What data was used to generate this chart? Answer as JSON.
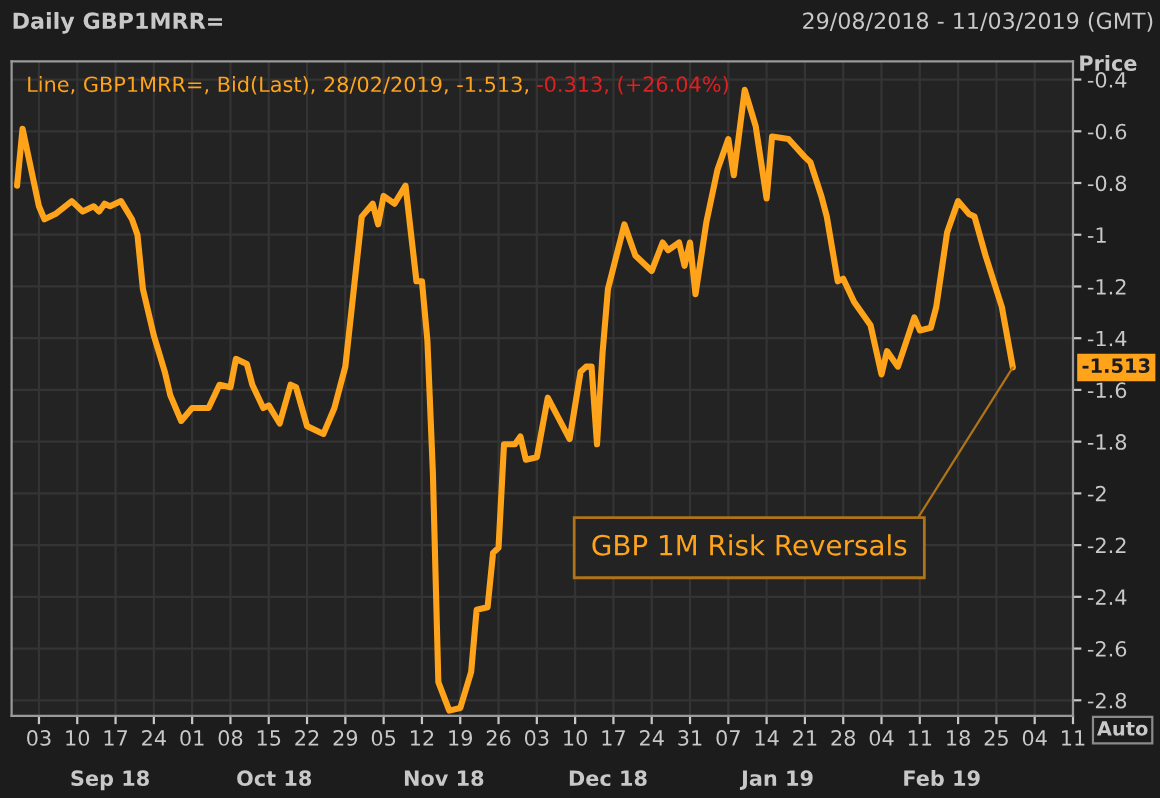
{
  "chart_data": {
    "type": "line",
    "title": "Daily GBP1MRR=",
    "subtitle": "29/08/2018 - 11/03/2019 (GMT)",
    "ylabel": "Price",
    "series": [
      {
        "name": "Line, GBP1MRR=, Bid(Last), 28/02/2019, -1.513,",
        "color": "#ffa31a",
        "x": [
          "2018-08-30",
          "2018-08-31",
          "2018-09-03",
          "2018-09-04",
          "2018-09-06",
          "2018-09-09",
          "2018-09-11",
          "2018-09-13",
          "2018-09-14",
          "2018-09-15",
          "2018-09-16",
          "2018-09-18",
          "2018-09-20",
          "2018-09-21",
          "2018-09-22",
          "2018-09-24",
          "2018-09-26",
          "2018-09-27",
          "2018-09-29",
          "2018-10-01",
          "2018-10-04",
          "2018-10-06",
          "2018-10-08",
          "2018-10-09",
          "2018-10-11",
          "2018-10-12",
          "2018-10-14",
          "2018-10-15",
          "2018-10-17",
          "2018-10-19",
          "2018-10-20",
          "2018-10-22",
          "2018-10-25",
          "2018-10-27",
          "2018-10-29",
          "2018-11-01",
          "2018-11-03",
          "2018-11-04",
          "2018-11-05",
          "2018-11-07",
          "2018-11-09",
          "2018-11-11",
          "2018-11-12",
          "2018-11-13",
          "2018-11-14",
          "2018-11-15",
          "2018-11-17",
          "2018-11-19",
          "2018-11-21",
          "2018-11-22",
          "2018-11-24",
          "2018-11-25",
          "2018-11-26",
          "2018-11-27",
          "2018-11-29",
          "2018-11-30",
          "2018-12-01",
          "2018-12-03",
          "2018-12-05",
          "2018-12-09",
          "2018-12-11",
          "2018-12-12",
          "2018-12-13",
          "2018-12-14",
          "2018-12-15",
          "2018-12-16",
          "2018-12-19",
          "2018-12-21",
          "2018-12-24",
          "2018-12-26",
          "2018-12-27",
          "2018-12-29",
          "2018-12-30",
          "2018-12-31",
          "2019-01-01",
          "2019-01-03",
          "2019-01-05",
          "2019-01-07",
          "2019-01-08",
          "2019-01-10",
          "2019-01-12",
          "2019-01-14",
          "2019-01-15",
          "2019-01-18",
          "2019-01-21",
          "2019-01-22",
          "2019-01-24",
          "2019-01-25",
          "2019-01-27",
          "2019-01-28",
          "2019-01-30",
          "2019-02-02",
          "2019-02-04",
          "2019-02-05",
          "2019-02-07",
          "2019-02-10",
          "2019-02-11",
          "2019-02-13",
          "2019-02-14",
          "2019-02-16",
          "2019-02-18",
          "2019-02-20",
          "2019-02-21",
          "2019-02-23",
          "2019-02-26",
          "2019-02-28"
        ],
        "values": [
          -0.81,
          -0.59,
          -0.89,
          -0.94,
          -0.92,
          -0.87,
          -0.91,
          -0.89,
          -0.91,
          -0.88,
          -0.89,
          -0.87,
          -0.94,
          -1.0,
          -1.21,
          -1.39,
          -1.53,
          -1.62,
          -1.72,
          -1.67,
          -1.67,
          -1.58,
          -1.59,
          -1.48,
          -1.5,
          -1.58,
          -1.67,
          -1.66,
          -1.73,
          -1.58,
          -1.59,
          -1.74,
          -1.77,
          -1.67,
          -1.51,
          -0.93,
          -0.88,
          -0.96,
          -0.85,
          -0.88,
          -0.81,
          -1.18,
          -1.18,
          -1.41,
          -1.92,
          -2.73,
          -2.84,
          -2.83,
          -2.69,
          -2.45,
          -2.44,
          -2.23,
          -2.21,
          -1.81,
          -1.81,
          -1.78,
          -1.87,
          -1.86,
          -1.63,
          -1.79,
          -1.53,
          -1.51,
          -1.51,
          -1.81,
          -1.46,
          -1.21,
          -0.96,
          -1.08,
          -1.14,
          -1.03,
          -1.06,
          -1.03,
          -1.12,
          -1.03,
          -1.23,
          -0.95,
          -0.75,
          -0.63,
          -0.77,
          -0.44,
          -0.58,
          -0.86,
          -0.62,
          -0.63,
          -0.7,
          -0.72,
          -0.85,
          -0.93,
          -1.18,
          -1.17,
          -1.26,
          -1.35,
          -1.54,
          -1.45,
          -1.51,
          -1.32,
          -1.37,
          -1.36,
          -1.28,
          -0.99,
          -0.87,
          -0.92,
          -0.93,
          -1.08,
          -1.28,
          -1.513
        ]
      }
    ],
    "xlim": [
      "2018-08-29",
      "2019-03-11"
    ],
    "xticks": [
      {
        "value": "2018-09-03",
        "label": "03"
      },
      {
        "value": "2018-09-10",
        "label": "10"
      },
      {
        "value": "2018-09-17",
        "label": "17"
      },
      {
        "value": "2018-09-24",
        "label": "24"
      },
      {
        "value": "2018-10-01",
        "label": "01"
      },
      {
        "value": "2018-10-08",
        "label": "08"
      },
      {
        "value": "2018-10-15",
        "label": "15"
      },
      {
        "value": "2018-10-22",
        "label": "22"
      },
      {
        "value": "2018-10-29",
        "label": "29"
      },
      {
        "value": "2018-11-05",
        "label": "05"
      },
      {
        "value": "2018-11-12",
        "label": "12"
      },
      {
        "value": "2018-11-19",
        "label": "19"
      },
      {
        "value": "2018-11-26",
        "label": "26"
      },
      {
        "value": "2018-12-03",
        "label": "03"
      },
      {
        "value": "2018-12-10",
        "label": "10"
      },
      {
        "value": "2018-12-17",
        "label": "17"
      },
      {
        "value": "2018-12-24",
        "label": "24"
      },
      {
        "value": "2018-12-31",
        "label": "31"
      },
      {
        "value": "2019-01-07",
        "label": "07"
      },
      {
        "value": "2019-01-14",
        "label": "14"
      },
      {
        "value": "2019-01-21",
        "label": "21"
      },
      {
        "value": "2019-01-28",
        "label": "28"
      },
      {
        "value": "2019-02-04",
        "label": "04"
      },
      {
        "value": "2019-02-11",
        "label": "11"
      },
      {
        "value": "2019-02-18",
        "label": "18"
      },
      {
        "value": "2019-02-25",
        "label": "25"
      },
      {
        "value": "2019-03-04",
        "label": "04"
      },
      {
        "value": "2019-03-11",
        "label": "11"
      }
    ],
    "x2lim": [
      "2018-08-29",
      "2019-03-11"
    ],
    "x2ticks": [
      {
        "value": "2018-09-16",
        "label": "Sep 18"
      },
      {
        "value": "2018-10-16",
        "label": "Oct 18"
      },
      {
        "value": "2018-11-16",
        "label": "Nov 18"
      },
      {
        "value": "2018-12-16",
        "label": "Dec 18"
      },
      {
        "value": "2019-01-16",
        "label": "Jan 19"
      },
      {
        "value": "2019-02-15",
        "label": "Feb 19"
      }
    ],
    "ylim": [
      -2.86,
      -0.33
    ],
    "yticks": [
      -0.4,
      -0.6,
      -0.8,
      -1,
      -1.2,
      -1.4,
      -1.6,
      -1.8,
      -2,
      -2.2,
      -2.4,
      -2.6,
      -2.8
    ],
    "grid": true,
    "legend": "top left",
    "marker": "none",
    "line_style": "solid",
    "annotations": [
      {
        "text": "GBP 1M Risk Reversals",
        "x": "2019-02-28",
        "y": -1.513
      },
      "-0.313, (+26.04%)",
      "-1.513",
      "Auto"
    ]
  }
}
